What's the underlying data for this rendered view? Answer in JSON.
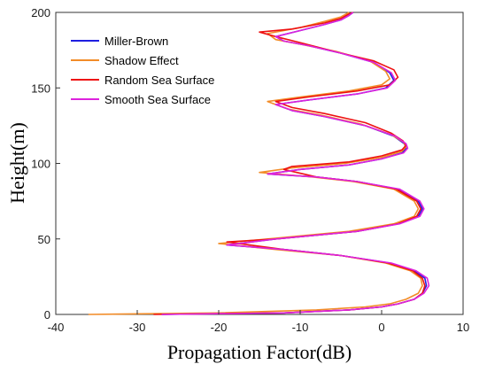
{
  "chart_data": {
    "type": "line",
    "xlabel": "Propagation Factor(dB)",
    "ylabel": "Height(m)",
    "xlim": [
      -40,
      10
    ],
    "ylim": [
      0,
      200
    ],
    "xticks": [
      -40,
      -30,
      -20,
      -10,
      0,
      10
    ],
    "yticks": [
      0,
      50,
      100,
      150,
      200
    ],
    "grid": false,
    "legend_position": "top-left",
    "series": [
      {
        "name": "Miller-Brown",
        "color": "#1f1fe0",
        "points": [
          [
            -27,
            0
          ],
          [
            -12,
            1
          ],
          [
            -4,
            3
          ],
          [
            0,
            5
          ],
          [
            2,
            7
          ],
          [
            4,
            10
          ],
          [
            5,
            14
          ],
          [
            5.5,
            19
          ],
          [
            5.3,
            24
          ],
          [
            4,
            29
          ],
          [
            1,
            34
          ],
          [
            -5,
            39
          ],
          [
            -12,
            43
          ],
          [
            -19,
            46
          ],
          [
            -13,
            50
          ],
          [
            -3,
            55
          ],
          [
            2,
            60
          ],
          [
            4.5,
            65
          ],
          [
            5,
            70
          ],
          [
            4.5,
            75
          ],
          [
            2,
            83
          ],
          [
            -3,
            88
          ],
          [
            -8,
            91
          ],
          [
            -14,
            93
          ],
          [
            -10,
            96
          ],
          [
            -4,
            99
          ],
          [
            0,
            103
          ],
          [
            2.5,
            107
          ],
          [
            3,
            110
          ],
          [
            2.8,
            113
          ],
          [
            1.5,
            118
          ],
          [
            -2,
            125
          ],
          [
            -7,
            131
          ],
          [
            -11,
            135
          ],
          [
            -13,
            139
          ],
          [
            -9,
            142
          ],
          [
            -3,
            146
          ],
          [
            0.5,
            150
          ],
          [
            1.5,
            155
          ],
          [
            1,
            160
          ],
          [
            -1,
            167
          ],
          [
            -5,
            173
          ],
          [
            -9,
            178
          ],
          [
            -12,
            181
          ],
          [
            -13,
            184
          ],
          [
            -10,
            188
          ],
          [
            -7,
            192
          ],
          [
            -5,
            195
          ],
          [
            -4,
            198
          ],
          [
            -3.5,
            200
          ]
        ]
      },
      {
        "name": "Shadow Effect",
        "color": "#f28c28",
        "points": [
          [
            -36,
            0
          ],
          [
            -20,
            1
          ],
          [
            -8,
            3
          ],
          [
            -2,
            5
          ],
          [
            1,
            7
          ],
          [
            3,
            10
          ],
          [
            4.5,
            14
          ],
          [
            5,
            19
          ],
          [
            4.8,
            24
          ],
          [
            3.5,
            29
          ],
          [
            0.5,
            34
          ],
          [
            -5,
            39
          ],
          [
            -13,
            43
          ],
          [
            -20,
            47
          ],
          [
            -14,
            50
          ],
          [
            -4,
            55
          ],
          [
            1.5,
            60
          ],
          [
            4,
            65
          ],
          [
            4.5,
            70
          ],
          [
            4,
            75
          ],
          [
            1.5,
            83
          ],
          [
            -3.5,
            88
          ],
          [
            -8.5,
            91
          ],
          [
            -15,
            94
          ],
          [
            -11,
            97
          ],
          [
            -4.5,
            100
          ],
          [
            0,
            104
          ],
          [
            2.5,
            108
          ],
          [
            3,
            111
          ],
          [
            2.7,
            114
          ],
          [
            1.2,
            119
          ],
          [
            -2.5,
            126
          ],
          [
            -7.5,
            132
          ],
          [
            -11.5,
            136
          ],
          [
            -14,
            141
          ],
          [
            -10,
            144
          ],
          [
            -4,
            148
          ],
          [
            0,
            152
          ],
          [
            1,
            156
          ],
          [
            0.5,
            161
          ],
          [
            -1.5,
            168
          ],
          [
            -5.5,
            174
          ],
          [
            -10,
            179
          ],
          [
            -13,
            182
          ],
          [
            -14,
            186
          ],
          [
            -10,
            190
          ],
          [
            -7,
            194
          ],
          [
            -5,
            197
          ],
          [
            -4,
            200
          ]
        ]
      },
      {
        "name": "Random Sea Surface",
        "color": "#ee1111",
        "points": [
          [
            -28,
            0
          ],
          [
            -12,
            1
          ],
          [
            -4,
            3
          ],
          [
            0,
            5
          ],
          [
            2,
            7
          ],
          [
            4,
            10
          ],
          [
            5,
            14
          ],
          [
            5.3,
            19
          ],
          [
            5,
            24
          ],
          [
            3.8,
            29
          ],
          [
            0.8,
            34
          ],
          [
            -5,
            39
          ],
          [
            -12,
            43
          ],
          [
            -19,
            48
          ],
          [
            -13,
            50
          ],
          [
            -3,
            55
          ],
          [
            2,
            60
          ],
          [
            4.3,
            65
          ],
          [
            4.8,
            70
          ],
          [
            4.3,
            75
          ],
          [
            1.8,
            83
          ],
          [
            -3,
            88
          ],
          [
            -8,
            91
          ],
          [
            -12,
            96
          ],
          [
            -11,
            98
          ],
          [
            -4,
            101
          ],
          [
            0,
            105
          ],
          [
            2.5,
            109
          ],
          [
            3,
            112
          ],
          [
            2.6,
            115
          ],
          [
            1.2,
            120
          ],
          [
            -2,
            127
          ],
          [
            -7,
            133
          ],
          [
            -11,
            137
          ],
          [
            -13,
            141
          ],
          [
            -9,
            144
          ],
          [
            -3,
            148
          ],
          [
            1,
            152
          ],
          [
            2,
            157
          ],
          [
            1.5,
            162
          ],
          [
            -1,
            168
          ],
          [
            -5,
            173
          ],
          [
            -10,
            180
          ],
          [
            -13,
            184
          ],
          [
            -15,
            187
          ],
          [
            -11,
            189
          ],
          [
            -7,
            193
          ],
          [
            -5,
            196
          ],
          [
            -4,
            199
          ],
          [
            -3.5,
            200
          ]
        ]
      },
      {
        "name": "Smooth Sea Surface",
        "color": "#dd22dd",
        "points": [
          [
            -27,
            0
          ],
          [
            -12,
            1
          ],
          [
            -4,
            3
          ],
          [
            0,
            5
          ],
          [
            2,
            7
          ],
          [
            4,
            10
          ],
          [
            5.2,
            14
          ],
          [
            5.8,
            19
          ],
          [
            5.6,
            24
          ],
          [
            4.2,
            29
          ],
          [
            1.2,
            34
          ],
          [
            -5,
            39
          ],
          [
            -12,
            43
          ],
          [
            -19,
            46
          ],
          [
            -13,
            50
          ],
          [
            -3,
            55
          ],
          [
            2.2,
            60
          ],
          [
            4.7,
            65
          ],
          [
            5.2,
            70
          ],
          [
            4.7,
            75
          ],
          [
            2.2,
            83
          ],
          [
            -3,
            88
          ],
          [
            -8,
            91
          ],
          [
            -14,
            93
          ],
          [
            -10,
            96
          ],
          [
            -4,
            99
          ],
          [
            0,
            103
          ],
          [
            2.7,
            107
          ],
          [
            3.2,
            110
          ],
          [
            3,
            113
          ],
          [
            1.7,
            118
          ],
          [
            -2,
            125
          ],
          [
            -7,
            131
          ],
          [
            -11,
            135
          ],
          [
            -13,
            139
          ],
          [
            -9,
            142
          ],
          [
            -3,
            146
          ],
          [
            0.7,
            150
          ],
          [
            1.7,
            155
          ],
          [
            1.2,
            160
          ],
          [
            -1,
            167
          ],
          [
            -5,
            173
          ],
          [
            -9,
            178
          ],
          [
            -12,
            181
          ],
          [
            -13,
            184
          ],
          [
            -10,
            188
          ],
          [
            -7,
            192
          ],
          [
            -5,
            195
          ],
          [
            -4,
            198
          ],
          [
            -3.5,
            200
          ]
        ]
      }
    ]
  }
}
